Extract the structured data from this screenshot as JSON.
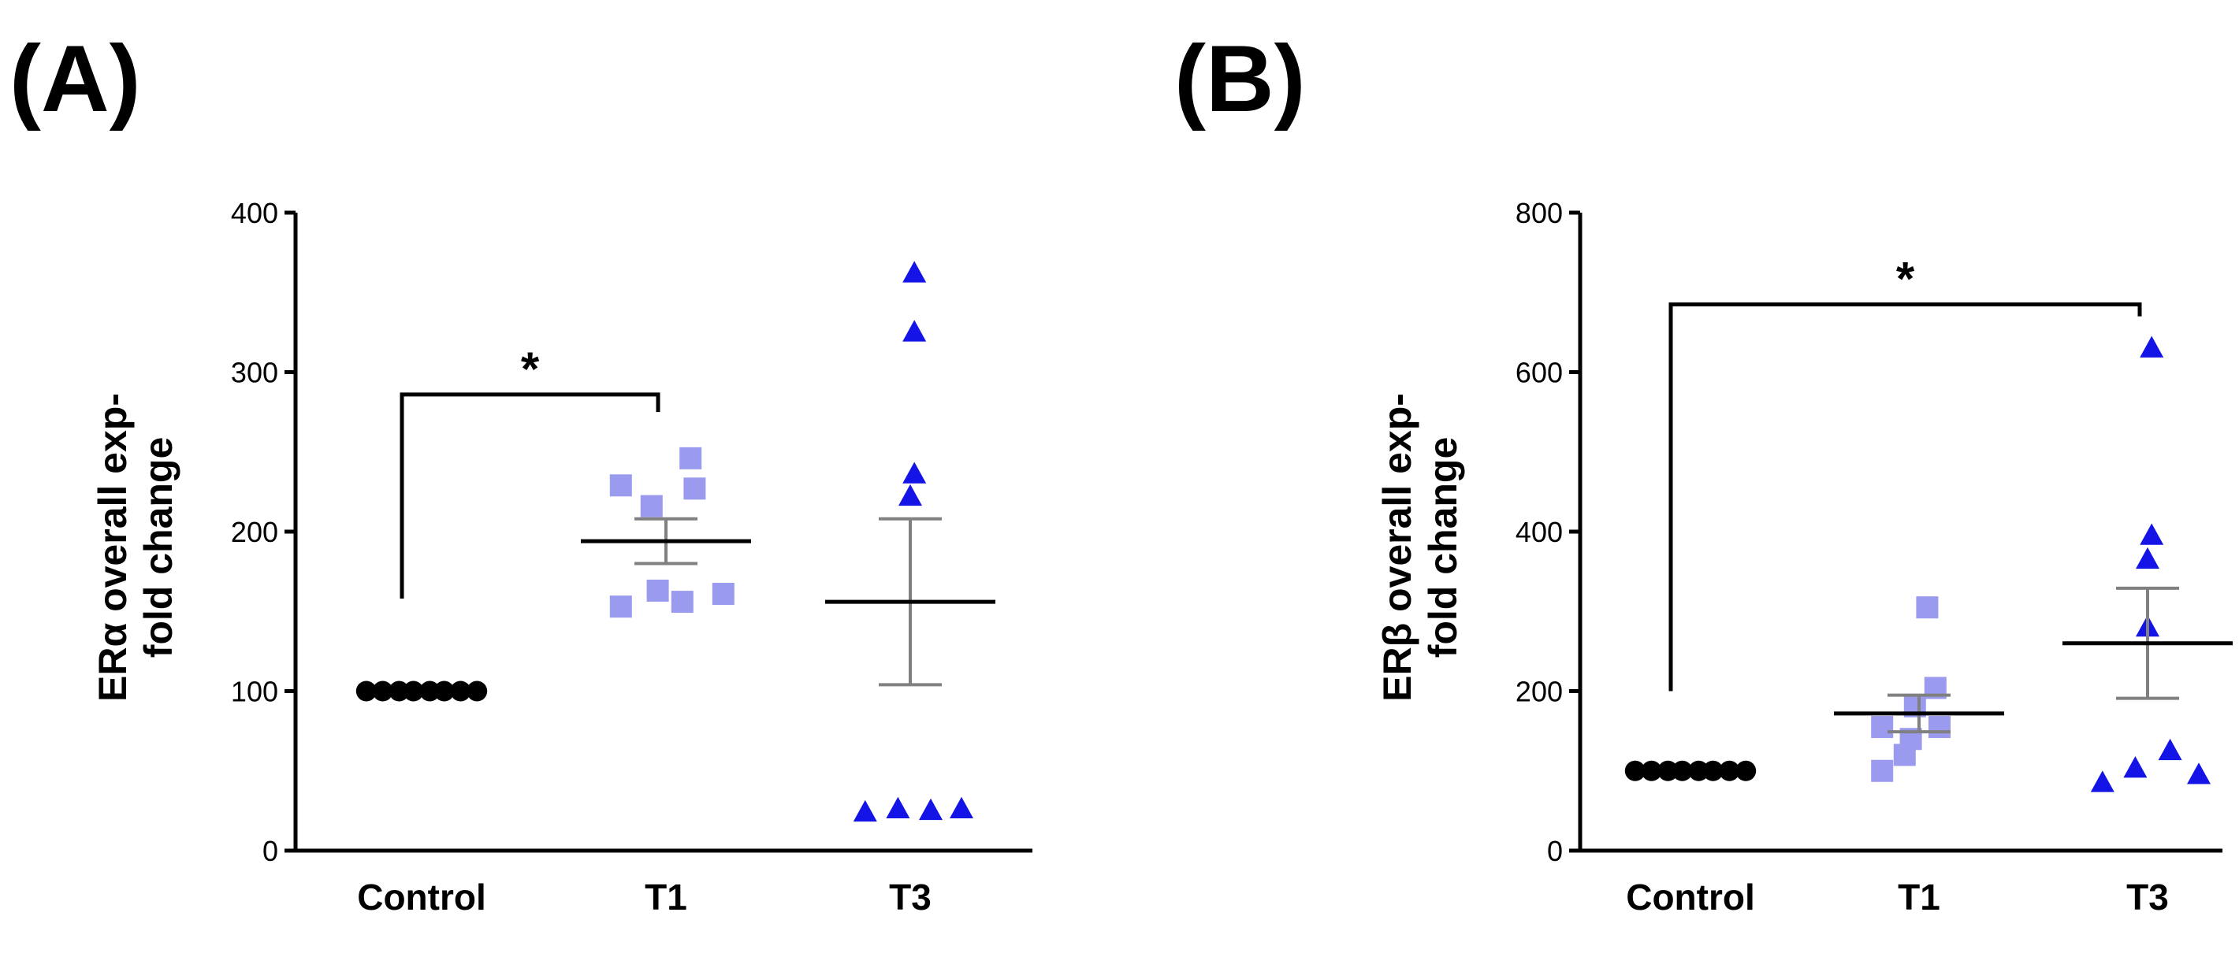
{
  "figure": {
    "panels": [
      {
        "label": "(A)"
      },
      {
        "label": "(B)"
      }
    ]
  },
  "colors": {
    "control": "#000000",
    "t1": "#9a9aee",
    "t3": "#1414e6",
    "sem": "#808080",
    "mean": "#000000"
  },
  "chart_data": [
    {
      "type": "scatter",
      "title": "",
      "ylabel": "ERα overall exp-\nfold change",
      "ylabel_lines": [
        "ERα overall exp-",
        "fold change"
      ],
      "xlabel": "",
      "ylim": [
        0,
        400
      ],
      "yticks": [
        0,
        100,
        200,
        300,
        400
      ],
      "categories": [
        "Control",
        "T1",
        "T3"
      ],
      "series": [
        {
          "name": "Control",
          "marker": "circle",
          "points": [
            [
              -0.27,
              100
            ],
            [
              -0.19,
              100
            ],
            [
              -0.11,
              100
            ],
            [
              -0.04,
              100
            ],
            [
              0.04,
              100
            ],
            [
              0.11,
              100
            ],
            [
              0.19,
              100
            ],
            [
              0.27,
              100
            ]
          ],
          "mean": 100,
          "sem": null
        },
        {
          "name": "T1",
          "marker": "square",
          "points": [
            [
              -0.22,
              229
            ],
            [
              0.12,
              246
            ],
            [
              -0.07,
              216
            ],
            [
              0.14,
              227
            ],
            [
              -0.04,
              163
            ],
            [
              0.28,
              161
            ],
            [
              -0.22,
              153
            ],
            [
              0.08,
              156
            ]
          ],
          "mean": 194,
          "sem": 14
        },
        {
          "name": "T3",
          "marker": "triangle",
          "points": [
            [
              0.02,
              362
            ],
            [
              0.02,
              325
            ],
            [
              0.02,
              236
            ],
            [
              0.0,
              222
            ],
            [
              -0.22,
              24
            ],
            [
              -0.06,
              26
            ],
            [
              0.1,
              25
            ],
            [
              0.25,
              26
            ]
          ],
          "mean": 156,
          "sem": 52
        }
      ],
      "significance": [
        {
          "from": "Control",
          "to": "T1",
          "label": "*",
          "y": 286,
          "left_drop": 158,
          "right_drop": 275
        }
      ]
    },
    {
      "type": "scatter",
      "title": "",
      "ylabel": "ERβ overall exp-\nfold change",
      "ylabel_lines": [
        "ERβ overall exp-",
        "fold change"
      ],
      "xlabel": "",
      "ylim": [
        0,
        800
      ],
      "yticks": [
        0,
        200,
        400,
        600,
        800
      ],
      "categories": [
        "Control",
        "T1",
        "T3"
      ],
      "series": [
        {
          "name": "Control",
          "marker": "circle",
          "points": [
            [
              -0.27,
              100
            ],
            [
              -0.19,
              100
            ],
            [
              -0.11,
              100
            ],
            [
              -0.04,
              100
            ],
            [
              0.04,
              100
            ],
            [
              0.11,
              100
            ],
            [
              0.19,
              100
            ],
            [
              0.27,
              100
            ]
          ],
          "mean": 100,
          "sem": null
        },
        {
          "name": "T1",
          "marker": "square",
          "points": [
            [
              0.04,
              305
            ],
            [
              0.08,
              204
            ],
            [
              -0.02,
              181
            ],
            [
              -0.18,
              155
            ],
            [
              0.1,
              155
            ],
            [
              -0.04,
              140
            ],
            [
              -0.18,
              100
            ],
            [
              -0.07,
              120
            ]
          ],
          "mean": 172,
          "sem": 23
        },
        {
          "name": "T3",
          "marker": "triangle",
          "points": [
            [
              0.02,
              630
            ],
            [
              0.02,
              395
            ],
            [
              0.0,
              365
            ],
            [
              0.0,
              280
            ],
            [
              -0.22,
              85
            ],
            [
              -0.06,
              103
            ],
            [
              0.11,
              125
            ],
            [
              0.25,
              95
            ]
          ],
          "mean": 260,
          "sem": 69
        }
      ],
      "significance": [
        {
          "from": "Control",
          "to": "T3",
          "label": "*",
          "y": 685,
          "left_drop": 200,
          "right_drop": 670
        }
      ]
    }
  ]
}
